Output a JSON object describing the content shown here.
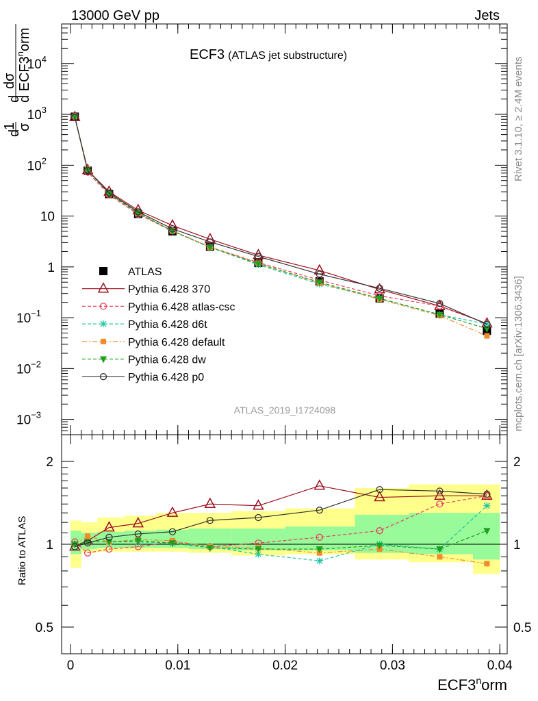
{
  "header": {
    "left": "13000 GeV pp",
    "right": "Jets"
  },
  "side": {
    "rivet": "Rivet 3.1.10, ≥ 2.4M events",
    "mcplots": "mcplots.cern.ch [arXiv:1306.3436]"
  },
  "title": {
    "main": "ECF3",
    "sub": "(ATLAS jet substructure)"
  },
  "watermark": "ATLAS_2019_I1724098",
  "ylabel_top": {
    "frac1_num": "1",
    "frac1_den": "σ",
    "frac1_d": "d",
    "frac2_num": "dσ",
    "frac2_den": "d ECF3",
    "frac2_sup": "n",
    "frac2_tail": "orm"
  },
  "ylabel_bottom": "Ratio to ATLAS",
  "xlabel": {
    "main": "ECF3",
    "sup": "n",
    "tail": "orm"
  },
  "x_ticks": [
    "0",
    "0.01",
    "0.02",
    "0.03",
    "0.04"
  ],
  "y_ticks_top": [
    {
      "b": "10",
      "e": "4",
      "v": 10000
    },
    {
      "b": "10",
      "e": "3",
      "v": 1000
    },
    {
      "b": "10",
      "e": "2",
      "v": 100
    },
    {
      "b": "10",
      "e": "",
      "v": 10
    },
    {
      "b": "1",
      "e": "",
      "v": 1
    },
    {
      "b": "10",
      "e": "−1",
      "v": 0.1
    },
    {
      "b": "10",
      "e": "−2",
      "v": 0.01
    },
    {
      "b": "10",
      "e": "−3",
      "v": 0.001
    }
  ],
  "y_ticks_bottom": [
    "0.5",
    "1",
    "2"
  ],
  "colors": {
    "atlas": "#000000",
    "p370": "#9b0e1e",
    "atlascsc": "#e83f5a",
    "d6t": "#1ec3a3",
    "default": "#f28a2e",
    "dw": "#1ea21e",
    "p0": "#333333",
    "band_yellow": "#ffff8c",
    "band_green": "#98fa98"
  },
  "chart_data": [
    {
      "type": "scatter",
      "xlabel": "ECF3norm",
      "ylabel": "1/σ dσ/d ECF3norm",
      "yscale": "log",
      "xlim": [
        -0.0015,
        0.0415
      ],
      "ylim": [
        0.0005,
        60000
      ],
      "bins": [
        0,
        0.001,
        0.0025,
        0.005,
        0.008,
        0.011,
        0.015,
        0.02,
        0.0265,
        0.0315,
        0.0375,
        0.04
      ],
      "x": [
        0.0004,
        0.0016,
        0.0036,
        0.0063,
        0.0095,
        0.013,
        0.0175,
        0.0232,
        0.0288,
        0.0344,
        0.0388
      ],
      "legend_position": "middle-left",
      "series": [
        {
          "name": "ATLAS",
          "key": "atlas",
          "marker": "square",
          "values": [
            900,
            78,
            27,
            11,
            5,
            2.5,
            1.2,
            0.52,
            0.24,
            0.12,
            0.055
          ]
        },
        {
          "name": "Pythia 6.428 370",
          "key": "p370",
          "marker": "triangle-open",
          "values": [
            880,
            80,
            30,
            13,
            6.5,
            3.5,
            1.7,
            0.85,
            0.36,
            0.17,
            0.077
          ]
        },
        {
          "name": "Pythia 6.428 atlas-csc",
          "key": "atlascsc",
          "marker": "circle-open",
          "values": [
            920,
            73,
            26,
            10.8,
            5.1,
            2.45,
            1.22,
            0.55,
            0.27,
            0.17,
            0.077
          ]
        },
        {
          "name": "Pythia 6.428 d6t",
          "key": "d6t",
          "marker": "star",
          "values": [
            910,
            80,
            27.5,
            11.2,
            5.1,
            2.45,
            1.1,
            0.46,
            0.24,
            0.115,
            0.075
          ]
        },
        {
          "name": "Pythia 6.428 default",
          "key": "default",
          "marker": "square-small",
          "values": [
            890,
            84,
            27.2,
            11.4,
            5.15,
            2.45,
            1.18,
            0.48,
            0.23,
            0.11,
            0.044
          ]
        },
        {
          "name": "Pythia 6.428 dw",
          "key": "dw",
          "marker": "triangle-down",
          "values": [
            900,
            80,
            27.3,
            11.5,
            5.05,
            2.42,
            1.15,
            0.5,
            0.24,
            0.115,
            0.061
          ]
        },
        {
          "name": "Pythia 6.428 p0",
          "key": "p0",
          "marker": "circle-open",
          "values": [
            880,
            79,
            28.5,
            12.1,
            5.6,
            3.1,
            1.6,
            0.72,
            0.38,
            0.19,
            0.074
          ]
        }
      ]
    },
    {
      "type": "line",
      "ylabel": "Ratio to ATLAS",
      "yscale": "log",
      "ylim": [
        0.4,
        2.5
      ],
      "x": [
        0.0004,
        0.0016,
        0.0036,
        0.0063,
        0.0095,
        0.013,
        0.0175,
        0.0232,
        0.0288,
        0.0344,
        0.0388
      ],
      "bands": {
        "yellow_low": [
          0.82,
          0.93,
          0.94,
          0.94,
          0.94,
          0.93,
          0.91,
          0.92,
          0.88,
          0.86,
          0.78
        ],
        "yellow_high": [
          1.22,
          1.2,
          1.25,
          1.27,
          1.3,
          1.3,
          1.32,
          1.35,
          1.6,
          1.65,
          1.65
        ],
        "green_low": [
          0.92,
          0.96,
          0.97,
          0.97,
          0.97,
          0.96,
          0.95,
          0.95,
          0.93,
          0.92,
          0.88
        ],
        "green_high": [
          1.12,
          1.1,
          1.11,
          1.12,
          1.13,
          1.14,
          1.14,
          1.16,
          1.28,
          1.3,
          1.3
        ]
      },
      "series": [
        {
          "name": "Pythia 6.428 370",
          "key": "p370",
          "values": [
            0.98,
            1.03,
            1.15,
            1.19,
            1.3,
            1.4,
            1.38,
            1.63,
            1.48,
            1.5,
            1.5
          ]
        },
        {
          "name": "Pythia 6.428 atlas-csc",
          "key": "atlascsc",
          "values": [
            1.02,
            0.93,
            0.96,
            0.98,
            1.02,
            0.98,
            1.01,
            1.06,
            1.12,
            1.4,
            1.5
          ]
        },
        {
          "name": "Pythia 6.428 d6t",
          "key": "d6t",
          "values": [
            1.0,
            1.02,
            1.02,
            1.02,
            1.01,
            0.98,
            0.92,
            0.87,
            1.0,
            0.96,
            1.38
          ]
        },
        {
          "name": "Pythia 6.428 default",
          "key": "default",
          "values": [
            1.0,
            1.07,
            1.02,
            1.04,
            1.03,
            0.98,
            0.97,
            0.93,
            0.96,
            0.9,
            0.85
          ]
        },
        {
          "name": "Pythia 6.428 dw",
          "key": "dw",
          "values": [
            1.0,
            1.02,
            1.02,
            1.03,
            1.01,
            0.97,
            0.96,
            0.96,
            0.99,
            0.96,
            1.12
          ]
        },
        {
          "name": "Pythia 6.428 p0",
          "key": "p0",
          "values": [
            0.98,
            1.01,
            1.06,
            1.09,
            1.11,
            1.22,
            1.25,
            1.33,
            1.58,
            1.56,
            1.52
          ]
        }
      ]
    }
  ]
}
